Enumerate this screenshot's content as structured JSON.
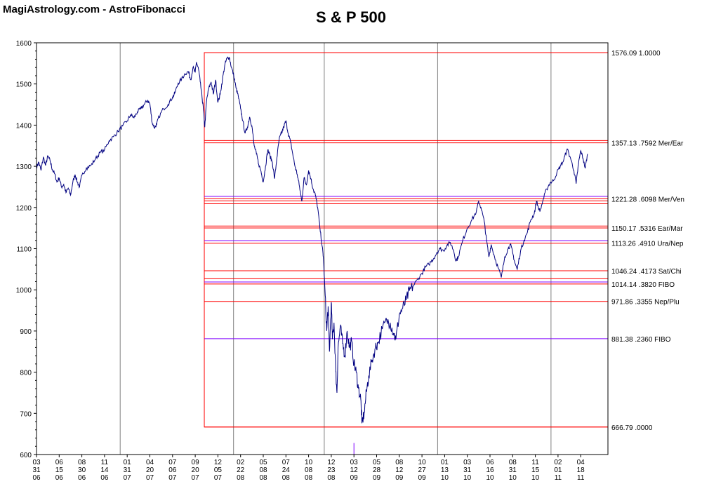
{
  "header": {
    "site_title": "MagiAstrology.com - AstroFibonacci",
    "chart_title": "S & P 500"
  },
  "colors": {
    "price_line": "#000080",
    "fib_red": "#ff0000",
    "fib_purple": "#8000ff",
    "grid": "#808080",
    "axis": "#000000"
  },
  "chart_data": {
    "type": "line",
    "title": "S & P 500",
    "ylim": [
      600,
      1600
    ],
    "y_ticks": [
      600,
      700,
      800,
      900,
      1000,
      1100,
      1200,
      1300,
      1400,
      1500,
      1600
    ],
    "x_tick_labels": [
      [
        "03",
        "31",
        "06"
      ],
      [
        "06",
        "15",
        "06"
      ],
      [
        "08",
        "30",
        "06"
      ],
      [
        "11",
        "14",
        "06"
      ],
      [
        "01",
        "31",
        "07"
      ],
      [
        "04",
        "20",
        "07"
      ],
      [
        "07",
        "06",
        "07"
      ],
      [
        "09",
        "20",
        "07"
      ],
      [
        "12",
        "05",
        "07"
      ],
      [
        "02",
        "22",
        "08"
      ],
      [
        "05",
        "08",
        "08"
      ],
      [
        "07",
        "24",
        "08"
      ],
      [
        "10",
        "08",
        "08"
      ],
      [
        "12",
        "23",
        "08"
      ],
      [
        "03",
        "12",
        "09"
      ],
      [
        "05",
        "28",
        "09"
      ],
      [
        "08",
        "12",
        "09"
      ],
      [
        "10",
        "27",
        "09"
      ],
      [
        "01",
        "13",
        "10"
      ],
      [
        "03",
        "31",
        "10"
      ],
      [
        "06",
        "16",
        "10"
      ],
      [
        "08",
        "31",
        "10"
      ],
      [
        "11",
        "15",
        "10"
      ],
      [
        "02",
        "01",
        "11"
      ],
      [
        "04",
        "18",
        "11"
      ]
    ],
    "major_gridline_tick_index": [
      4,
      9,
      13,
      18,
      23
    ],
    "grid": true,
    "fib_box": {
      "x_start_tick_index": 7.4,
      "x_end_tick_index": 25.6,
      "y_low": 666.79,
      "y_high": 1576.09
    },
    "fib_levels": [
      {
        "label": "1576.09  1.0000",
        "value": 1576.09,
        "color": "red",
        "labeled": true
      },
      {
        "label": "1357.13  .7592 Mer/Ear",
        "value": 1357.13,
        "color": "red",
        "labeled": true
      },
      {
        "value": 1362.5,
        "color": "red",
        "labeled": false
      },
      {
        "label": "1221.28  .6098 Mer/Ven",
        "value": 1221.28,
        "color": "red",
        "labeled": true
      },
      {
        "value": 1227.0,
        "color": "purple",
        "labeled": false
      },
      {
        "value": 1216.0,
        "color": "red",
        "labeled": false
      },
      {
        "value": 1209.0,
        "color": "red",
        "labeled": false
      },
      {
        "label": "1150.17  .5316 Ear/Mar",
        "value": 1150.17,
        "color": "red",
        "labeled": true
      },
      {
        "value": 1155.0,
        "color": "red",
        "labeled": false
      },
      {
        "label": "1113.26  .4910 Ura/Nep",
        "value": 1113.26,
        "color": "red",
        "labeled": true
      },
      {
        "value": 1119.5,
        "color": "purple",
        "labeled": false
      },
      {
        "label": "1046.24  .4173 Sat/Chi",
        "value": 1046.24,
        "color": "red",
        "labeled": true
      },
      {
        "label": "1014.14  .3820 FIBO",
        "value": 1014.14,
        "color": "red",
        "labeled": true
      },
      {
        "value": 1019.0,
        "color": "purple",
        "labeled": false
      },
      {
        "value": 1027.0,
        "color": "red",
        "labeled": false
      },
      {
        "label": "971.86  .3355 Nep/Plu",
        "value": 971.86,
        "color": "red",
        "labeled": true
      },
      {
        "label": "881.38  .2360 FIBO",
        "value": 881.38,
        "color": "purple",
        "labeled": true
      },
      {
        "label": "666.79  .0000",
        "value": 666.79,
        "color": "red",
        "labeled": true
      }
    ],
    "marker": {
      "x_tick_index": 14,
      "y_from": 600,
      "y_to": 628,
      "color": "purple"
    },
    "series": [
      {
        "values": [
          [
            0.0,
            1298
          ],
          [
            0.1,
            1310
          ],
          [
            0.2,
            1290
          ],
          [
            0.3,
            1322
          ],
          [
            0.4,
            1302
          ],
          [
            0.5,
            1325
          ],
          [
            0.6,
            1313
          ],
          [
            0.7,
            1292
          ],
          [
            0.8,
            1282
          ],
          [
            0.9,
            1262
          ],
          [
            1.0,
            1272
          ],
          [
            1.1,
            1250
          ],
          [
            1.2,
            1256
          ],
          [
            1.3,
            1236
          ],
          [
            1.4,
            1247
          ],
          [
            1.5,
            1230
          ],
          [
            1.6,
            1261
          ],
          [
            1.7,
            1280
          ],
          [
            1.8,
            1262
          ],
          [
            1.9,
            1250
          ],
          [
            2.0,
            1278
          ],
          [
            2.2,
            1296
          ],
          [
            2.4,
            1302
          ],
          [
            2.6,
            1318
          ],
          [
            2.8,
            1333
          ],
          [
            3.0,
            1340
          ],
          [
            3.2,
            1362
          ],
          [
            3.4,
            1372
          ],
          [
            3.6,
            1385
          ],
          [
            3.8,
            1398
          ],
          [
            4.0,
            1410
          ],
          [
            4.15,
            1425
          ],
          [
            4.3,
            1418
          ],
          [
            4.45,
            1432
          ],
          [
            4.6,
            1440
          ],
          [
            4.75,
            1450
          ],
          [
            4.9,
            1460
          ],
          [
            5.0,
            1452
          ],
          [
            5.1,
            1406
          ],
          [
            5.2,
            1394
          ],
          [
            5.3,
            1402
          ],
          [
            5.4,
            1420
          ],
          [
            5.6,
            1440
          ],
          [
            5.8,
            1450
          ],
          [
            6.0,
            1468
          ],
          [
            6.1,
            1478
          ],
          [
            6.25,
            1502
          ],
          [
            6.4,
            1512
          ],
          [
            6.55,
            1525
          ],
          [
            6.7,
            1530
          ],
          [
            6.8,
            1510
          ],
          [
            6.9,
            1540
          ],
          [
            7.0,
            1528
          ],
          [
            7.05,
            1553
          ],
          [
            7.15,
            1535
          ],
          [
            7.22,
            1505
          ],
          [
            7.3,
            1468
          ],
          [
            7.36,
            1440
          ],
          [
            7.42,
            1395
          ],
          [
            7.5,
            1460
          ],
          [
            7.6,
            1490
          ],
          [
            7.7,
            1505
          ],
          [
            7.8,
            1475
          ],
          [
            7.9,
            1510
          ],
          [
            8.0,
            1455
          ],
          [
            8.1,
            1475
          ],
          [
            8.2,
            1510
          ],
          [
            8.3,
            1545
          ],
          [
            8.4,
            1562
          ],
          [
            8.5,
            1565
          ],
          [
            8.6,
            1540
          ],
          [
            8.7,
            1520
          ],
          [
            8.8,
            1490
          ],
          [
            8.9,
            1470
          ],
          [
            9.0,
            1440
          ],
          [
            9.1,
            1410
          ],
          [
            9.2,
            1380
          ],
          [
            9.3,
            1395
          ],
          [
            9.4,
            1420
          ],
          [
            9.5,
            1398
          ],
          [
            9.6,
            1350
          ],
          [
            9.7,
            1330
          ],
          [
            9.8,
            1305
          ],
          [
            9.9,
            1288
          ],
          [
            10.0,
            1262
          ],
          [
            10.1,
            1300
          ],
          [
            10.2,
            1340
          ],
          [
            10.3,
            1325
          ],
          [
            10.4,
            1310
          ],
          [
            10.5,
            1270
          ],
          [
            10.6,
            1320
          ],
          [
            10.7,
            1365
          ],
          [
            10.8,
            1380
          ],
          [
            10.9,
            1395
          ],
          [
            11.0,
            1410
          ],
          [
            11.1,
            1380
          ],
          [
            11.2,
            1360
          ],
          [
            11.3,
            1330
          ],
          [
            11.4,
            1300
          ],
          [
            11.5,
            1280
          ],
          [
            11.6,
            1250
          ],
          [
            11.7,
            1215
          ],
          [
            11.8,
            1272
          ],
          [
            11.9,
            1255
          ],
          [
            12.0,
            1290
          ],
          [
            12.1,
            1270
          ],
          [
            12.2,
            1245
          ],
          [
            12.3,
            1230
          ],
          [
            12.4,
            1200
          ],
          [
            12.5,
            1150
          ],
          [
            12.6,
            1105
          ],
          [
            12.65,
            1080
          ],
          [
            12.72,
            1000
          ],
          [
            12.8,
            900
          ],
          [
            12.86,
            960
          ],
          [
            12.92,
            850
          ],
          [
            13.0,
            970
          ],
          [
            13.05,
            880
          ],
          [
            13.12,
            920
          ],
          [
            13.2,
            800
          ],
          [
            13.25,
            750
          ],
          [
            13.3,
            860
          ],
          [
            13.4,
            910
          ],
          [
            13.5,
            870
          ],
          [
            13.6,
            840
          ],
          [
            13.7,
            900
          ],
          [
            13.8,
            860
          ],
          [
            13.9,
            875
          ],
          [
            14.0,
            820
          ],
          [
            14.1,
            800
          ],
          [
            14.2,
            760
          ],
          [
            14.3,
            735
          ],
          [
            14.35,
            676
          ],
          [
            14.45,
            700
          ],
          [
            14.55,
            752
          ],
          [
            14.65,
            790
          ],
          [
            14.8,
            830
          ],
          [
            14.95,
            860
          ],
          [
            15.05,
            870
          ],
          [
            15.25,
            905
          ],
          [
            15.45,
            925
          ],
          [
            15.6,
            920
          ],
          [
            15.75,
            895
          ],
          [
            15.85,
            880
          ],
          [
            16.0,
            940
          ],
          [
            16.15,
            955
          ],
          [
            16.3,
            975
          ],
          [
            16.45,
            998
          ],
          [
            16.6,
            1008
          ],
          [
            16.8,
            1025
          ],
          [
            17.0,
            1040
          ],
          [
            17.15,
            1055
          ],
          [
            17.3,
            1062
          ],
          [
            17.5,
            1075
          ],
          [
            17.65,
            1090
          ],
          [
            17.8,
            1100
          ],
          [
            17.95,
            1095
          ],
          [
            18.1,
            1108
          ],
          [
            18.25,
            1115
          ],
          [
            18.4,
            1095
          ],
          [
            18.5,
            1070
          ],
          [
            18.6,
            1080
          ],
          [
            18.8,
            1120
          ],
          [
            19.0,
            1150
          ],
          [
            19.2,
            1170
          ],
          [
            19.4,
            1190
          ],
          [
            19.5,
            1215
          ],
          [
            19.6,
            1200
          ],
          [
            19.75,
            1165
          ],
          [
            19.85,
            1120
          ],
          [
            19.95,
            1080
          ],
          [
            20.05,
            1110
          ],
          [
            20.2,
            1080
          ],
          [
            20.35,
            1055
          ],
          [
            20.5,
            1030
          ],
          [
            20.65,
            1080
          ],
          [
            20.8,
            1100
          ],
          [
            20.9,
            1110
          ],
          [
            21.0,
            1090
          ],
          [
            21.1,
            1065
          ],
          [
            21.2,
            1050
          ],
          [
            21.35,
            1095
          ],
          [
            21.5,
            1120
          ],
          [
            21.65,
            1140
          ],
          [
            21.8,
            1170
          ],
          [
            21.95,
            1185
          ],
          [
            22.05,
            1215
          ],
          [
            22.2,
            1190
          ],
          [
            22.35,
            1220
          ],
          [
            22.5,
            1245
          ],
          [
            22.65,
            1260
          ],
          [
            22.8,
            1265
          ],
          [
            22.95,
            1285
          ],
          [
            23.1,
            1300
          ],
          [
            23.25,
            1315
          ],
          [
            23.4,
            1342
          ],
          [
            23.55,
            1320
          ],
          [
            23.7,
            1290
          ],
          [
            23.8,
            1258
          ],
          [
            23.9,
            1305
          ],
          [
            24.0,
            1338
          ],
          [
            24.1,
            1320
          ],
          [
            24.2,
            1295
          ],
          [
            24.3,
            1330
          ]
        ]
      }
    ]
  }
}
